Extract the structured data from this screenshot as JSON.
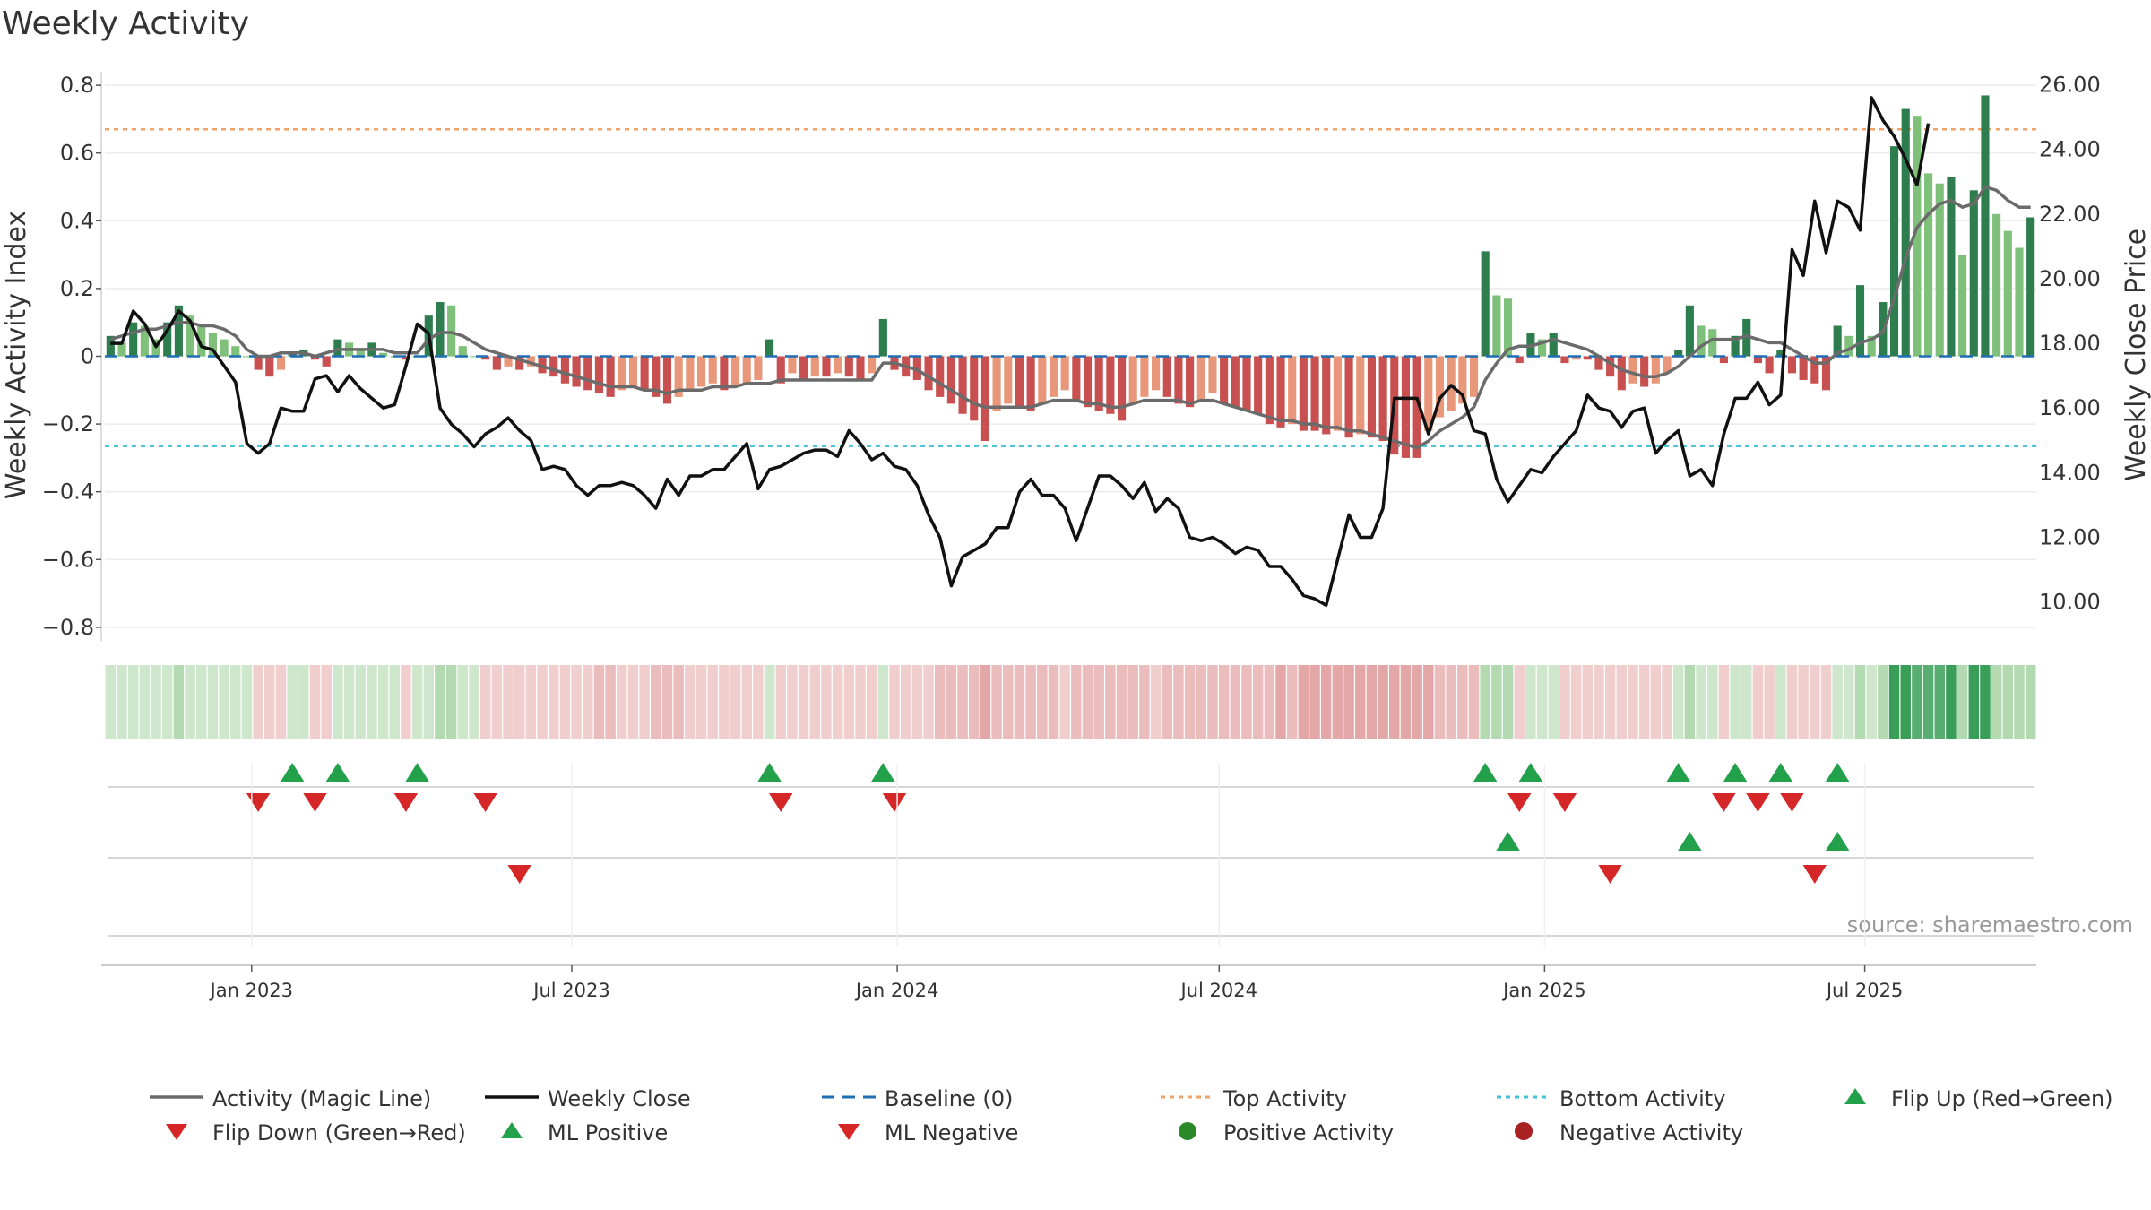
{
  "chart_data": {
    "type": "bar",
    "title": "Weekly Activity",
    "ylabel": "Weekly Activity Index",
    "y2label": "Weekly Close Price",
    "ylim": [
      -0.84,
      0.84
    ],
    "y2lim": [
      8.8,
      26.4
    ],
    "yticks": [
      -0.8,
      -0.6,
      -0.4,
      -0.2,
      0,
      0.2,
      0.4,
      0.6,
      0.8
    ],
    "ytick_labels": [
      "−0.8",
      "−0.6",
      "−0.4",
      "−0.2",
      "0",
      "0.2",
      "0.4",
      "0.6",
      "0.8"
    ],
    "y2ticks": [
      10,
      12,
      14,
      16,
      18,
      20,
      22,
      24,
      26
    ],
    "y2tick_labels": [
      "10.00",
      "12.00",
      "14.00",
      "16.00",
      "18.00",
      "20.00",
      "22.00",
      "24.00",
      "26.00"
    ],
    "x_start": "2022-10-10",
    "x_end": "2025-10-06",
    "xticks": [
      {
        "date": "2023-01-01",
        "label": "Jan 2023"
      },
      {
        "date": "2023-07-01",
        "label": "Jul 2023"
      },
      {
        "date": "2024-01-01",
        "label": "Jan 2024"
      },
      {
        "date": "2024-07-01",
        "label": "Jul 2024"
      },
      {
        "date": "2025-01-01",
        "label": "Jan 2025"
      },
      {
        "date": "2025-07-01",
        "label": "Jul 2025"
      }
    ],
    "top_activity": 0.67,
    "bottom_activity": -0.265,
    "activity": [
      0.06,
      0.04,
      0.1,
      0.09,
      0.05,
      0.1,
      0.15,
      0.12,
      0.09,
      0.07,
      0.05,
      0.03,
      0.0,
      -0.04,
      -0.06,
      -0.04,
      0.01,
      0.02,
      -0.01,
      -0.03,
      0.05,
      0.04,
      0.02,
      0.04,
      0.01,
      0.0,
      -0.01,
      0.0,
      0.12,
      0.16,
      0.15,
      0.03,
      0.0,
      -0.01,
      -0.04,
      -0.03,
      -0.04,
      -0.03,
      -0.05,
      -0.06,
      -0.08,
      -0.09,
      -0.1,
      -0.11,
      -0.12,
      -0.1,
      -0.09,
      -0.1,
      -0.12,
      -0.14,
      -0.12,
      -0.1,
      -0.09,
      -0.08,
      -0.1,
      -0.09,
      -0.08,
      -0.07,
      0.05,
      -0.08,
      -0.05,
      -0.07,
      -0.06,
      -0.06,
      -0.05,
      -0.06,
      -0.07,
      -0.05,
      0.11,
      -0.04,
      -0.06,
      -0.07,
      -0.1,
      -0.12,
      -0.14,
      -0.17,
      -0.19,
      -0.25,
      -0.16,
      -0.14,
      -0.15,
      -0.16,
      -0.14,
      -0.12,
      -0.1,
      -0.13,
      -0.15,
      -0.16,
      -0.17,
      -0.19,
      -0.14,
      -0.12,
      -0.1,
      -0.12,
      -0.14,
      -0.15,
      -0.13,
      -0.11,
      -0.14,
      -0.15,
      -0.16,
      -0.17,
      -0.2,
      -0.21,
      -0.2,
      -0.22,
      -0.22,
      -0.23,
      -0.22,
      -0.24,
      -0.23,
      -0.24,
      -0.25,
      -0.29,
      -0.3,
      -0.3,
      -0.22,
      -0.18,
      -0.16,
      -0.14,
      -0.12,
      0.31,
      0.18,
      0.17,
      -0.02,
      0.07,
      0.05,
      0.07,
      -0.02,
      -0.01,
      -0.01,
      -0.04,
      -0.06,
      -0.1,
      -0.08,
      -0.09,
      -0.08,
      -0.05,
      0.02,
      0.15,
      0.09,
      0.08,
      -0.02,
      0.06,
      0.11,
      -0.02,
      -0.05,
      0.02,
      -0.05,
      -0.07,
      -0.08,
      -0.1,
      0.09,
      0.06,
      0.21,
      0.06,
      0.16,
      0.62,
      0.73,
      0.71,
      0.54,
      0.51,
      0.53,
      0.3,
      0.49,
      0.77,
      0.42,
      0.37,
      0.32,
      0.41
    ],
    "magic_line": [
      0.05,
      0.06,
      0.07,
      0.08,
      0.08,
      0.09,
      0.1,
      0.1,
      0.09,
      0.09,
      0.08,
      0.06,
      0.02,
      0.0,
      0.0,
      0.01,
      0.01,
      0.01,
      0.0,
      0.01,
      0.02,
      0.02,
      0.02,
      0.02,
      0.02,
      0.01,
      0.01,
      0.01,
      0.05,
      0.07,
      0.07,
      0.06,
      0.04,
      0.02,
      0.01,
      0.0,
      -0.01,
      -0.02,
      -0.03,
      -0.04,
      -0.05,
      -0.06,
      -0.07,
      -0.08,
      -0.09,
      -0.09,
      -0.09,
      -0.1,
      -0.1,
      -0.11,
      -0.1,
      -0.1,
      -0.1,
      -0.09,
      -0.09,
      -0.09,
      -0.08,
      -0.08,
      -0.08,
      -0.07,
      -0.07,
      -0.07,
      -0.07,
      -0.07,
      -0.07,
      -0.07,
      -0.07,
      -0.07,
      -0.02,
      -0.02,
      -0.03,
      -0.04,
      -0.06,
      -0.08,
      -0.1,
      -0.12,
      -0.14,
      -0.15,
      -0.15,
      -0.15,
      -0.15,
      -0.15,
      -0.14,
      -0.13,
      -0.13,
      -0.13,
      -0.14,
      -0.14,
      -0.15,
      -0.15,
      -0.14,
      -0.13,
      -0.13,
      -0.13,
      -0.13,
      -0.14,
      -0.13,
      -0.13,
      -0.14,
      -0.15,
      -0.16,
      -0.17,
      -0.18,
      -0.19,
      -0.19,
      -0.2,
      -0.2,
      -0.21,
      -0.21,
      -0.22,
      -0.22,
      -0.23,
      -0.24,
      -0.25,
      -0.26,
      -0.27,
      -0.25,
      -0.22,
      -0.2,
      -0.18,
      -0.15,
      -0.07,
      -0.02,
      0.02,
      0.03,
      0.03,
      0.04,
      0.05,
      0.04,
      0.03,
      0.02,
      0.0,
      -0.02,
      -0.04,
      -0.05,
      -0.06,
      -0.06,
      -0.05,
      -0.03,
      0.0,
      0.03,
      0.05,
      0.05,
      0.05,
      0.06,
      0.05,
      0.04,
      0.04,
      0.02,
      0.0,
      -0.02,
      -0.02,
      0.01,
      0.02,
      0.04,
      0.05,
      0.07,
      0.17,
      0.29,
      0.38,
      0.42,
      0.45,
      0.46,
      0.44,
      0.45,
      0.5,
      0.49,
      0.46,
      0.44,
      0.44
    ],
    "close": [
      18.0,
      18.0,
      19.0,
      18.6,
      17.9,
      18.4,
      19.0,
      18.7,
      17.9,
      17.8,
      17.3,
      16.8,
      14.9,
      14.6,
      14.9,
      16.0,
      15.9,
      15.9,
      16.9,
      17.0,
      16.5,
      17.0,
      16.6,
      16.3,
      16.0,
      16.1,
      17.3,
      18.6,
      18.3,
      16.0,
      15.5,
      15.2,
      14.8,
      15.2,
      15.4,
      15.7,
      15.3,
      15.0,
      14.1,
      14.2,
      14.1,
      13.6,
      13.3,
      13.6,
      13.6,
      13.7,
      13.6,
      13.3,
      12.9,
      13.8,
      13.3,
      13.9,
      13.9,
      14.1,
      14.1,
      14.5,
      14.9,
      13.5,
      14.1,
      14.2,
      14.4,
      14.6,
      14.7,
      14.7,
      14.5,
      15.3,
      14.9,
      14.4,
      14.6,
      14.2,
      14.1,
      13.6,
      12.7,
      12.0,
      10.5,
      11.4,
      11.6,
      11.8,
      12.3,
      12.3,
      13.4,
      13.8,
      13.3,
      13.3,
      12.9,
      11.9,
      12.9,
      13.9,
      13.9,
      13.6,
      13.2,
      13.7,
      12.8,
      13.2,
      12.9,
      12.0,
      11.9,
      12.0,
      11.8,
      11.5,
      11.7,
      11.6,
      11.1,
      11.1,
      10.7,
      10.2,
      10.1,
      9.9,
      11.3,
      12.7,
      12.0,
      12.0,
      12.9,
      16.3,
      16.3,
      16.3,
      15.2,
      16.3,
      16.7,
      16.4,
      15.3,
      15.2,
      13.8,
      13.1,
      13.6,
      14.1,
      14.0,
      14.5,
      14.9,
      15.3,
      16.4,
      16.0,
      15.9,
      15.4,
      15.9,
      16.0,
      14.6,
      15.0,
      15.3,
      13.9,
      14.1,
      13.6,
      15.2,
      16.3,
      16.3,
      16.8,
      16.1,
      16.4,
      20.9,
      20.1,
      22.4,
      20.8,
      22.4,
      22.2,
      21.5,
      25.6,
      24.9,
      24.4,
      23.7,
      22.9,
      24.8
    ]
  },
  "legend": {
    "items": [
      {
        "key": "magic",
        "label": "Activity (Magic Line)"
      },
      {
        "key": "close",
        "label": "Weekly Close"
      },
      {
        "key": "baseline",
        "label": "Baseline (0)"
      },
      {
        "key": "top",
        "label": "Top Activity"
      },
      {
        "key": "bottom",
        "label": "Bottom Activity"
      },
      {
        "key": "flipup",
        "label": "Flip Up (Red→Green)"
      },
      {
        "key": "flipdown",
        "label": "Flip Down (Green→Red)"
      },
      {
        "key": "mlpos",
        "label": "ML Positive"
      },
      {
        "key": "mlneg",
        "label": "ML Negative"
      },
      {
        "key": "posact",
        "label": "Positive Activity"
      },
      {
        "key": "negact",
        "label": "Negative Activity"
      }
    ]
  },
  "source": "source: sharemaestro.com",
  "colors": {
    "pos_strong": "#2e7d4f",
    "pos_light": "#7fc07a",
    "neg_strong": "#c85050",
    "neg_light": "#e8977a",
    "magic": "#6b6b6b",
    "close": "#111111",
    "baseline": "#1f6fb5",
    "top": "#f0a36a",
    "bottom": "#3fc3d8",
    "tri_up": "#22a04a",
    "tri_down": "#d62728",
    "pos_dot": "#2a8a2a",
    "neg_dot": "#a82222"
  }
}
